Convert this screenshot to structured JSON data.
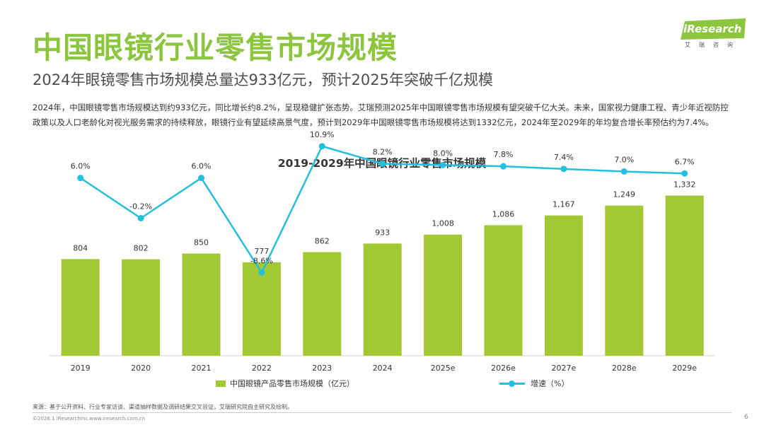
{
  "page": {
    "title": "中国眼镜行业零售市场规模",
    "subtitle": "2024年眼镜零售市场规模总量达933亿元，预计2025年突破千亿规模",
    "paragraph": "2024年，中国眼镜零售市场规模达到约933亿元，同比增长约8.2%，呈现稳健扩张态势。艾瑞预测2025年中国眼镜零售市场规模有望突破千亿大关。未来，国家视力健康工程、青少年近视防控政策以及人口老龄化对视光服务需求的持续释放，眼镜行业有望延续高景气度，预计到2029年中国眼镜零售市场规模将达到1332亿元，2024年至2029年的年均复合增长率预估约为7.4%。",
    "logo": "iResearch",
    "logo_sub": "艾瑞咨询",
    "source": "来源：基于公开资料、行业专家访谈、渠道抽样数据及调研结果交叉验证，艾瑞研究院自主研究及绘制。",
    "copyright": "©2026.1 iResearchInc.www.iresearch.com.cn",
    "page_number": "6"
  },
  "colors": {
    "title": "#8cc63f",
    "bar": "#a2c933",
    "line": "#22c0dd"
  },
  "chart_data": {
    "type": "bar+line",
    "title": "2019-2029年中国眼镜行业零售市场规模",
    "categories": [
      "2019",
      "2020",
      "2021",
      "2022",
      "2023",
      "2024",
      "2025e",
      "2026e",
      "2027e",
      "2028e",
      "2029e"
    ],
    "series": [
      {
        "name": "中国眼镜产品零售市场规模（亿元）",
        "type": "bar",
        "values": [
          804,
          802,
          850,
          777,
          862,
          933,
          1008,
          1086,
          1167,
          1249,
          1332
        ],
        "labels": [
          "804",
          "802",
          "850",
          "777",
          "862",
          "933",
          "1,008",
          "1,086",
          "1,167",
          "1,249",
          "1,332"
        ]
      },
      {
        "name": "增速（%）",
        "type": "line",
        "values": [
          6.0,
          -0.2,
          6.0,
          -8.6,
          10.9,
          8.2,
          8.0,
          7.8,
          7.4,
          7.0,
          6.7
        ],
        "labels": [
          "6.0%",
          "-0.2%",
          "6.0%",
          "-8.6%",
          "10.9%",
          "8.2%",
          "8.0%",
          "7.8%",
          "7.4%",
          "7.0%",
          "6.7%"
        ]
      }
    ],
    "bar_axis_range": [
      0,
      2000
    ],
    "line_axis_range": [
      -14,
      16
    ],
    "legend_position": "bottom"
  }
}
